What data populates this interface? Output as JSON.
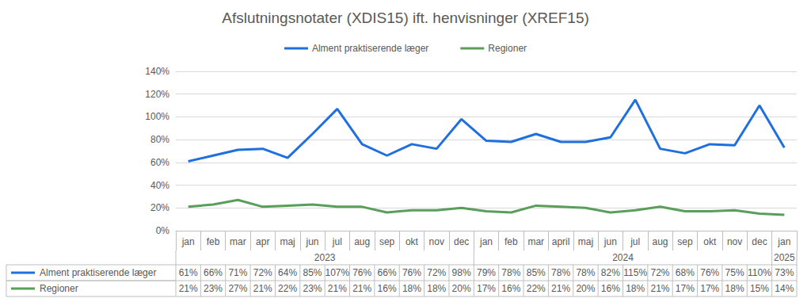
{
  "chart_data": {
    "type": "line",
    "title": "Afslutningsnotater (XDIS15) ift. henvisninger (XREF15)",
    "categories": [
      "jan",
      "feb",
      "mar",
      "apr",
      "maj",
      "jun",
      "jul",
      "aug",
      "sep",
      "okt",
      "nov",
      "dec",
      "jan",
      "feb",
      "mar",
      "april",
      "maj",
      "jun",
      "jul",
      "aug",
      "sep",
      "okt",
      "nov",
      "dec",
      "jan"
    ],
    "category_years": [
      "2023",
      "2023",
      "2023",
      "2023",
      "2023",
      "2023",
      "2023",
      "2023",
      "2023",
      "2023",
      "2023",
      "2023",
      "2024",
      "2024",
      "2024",
      "2024",
      "2024",
      "2024",
      "2024",
      "2024",
      "2024",
      "2024",
      "2024",
      "2024",
      "2025"
    ],
    "series": [
      {
        "name": "Alment praktiserende læger",
        "color": "#1f6fe0",
        "values": [
          61,
          66,
          71,
          72,
          64,
          85,
          107,
          76,
          66,
          76,
          72,
          98,
          79,
          78,
          85,
          78,
          78,
          82,
          115,
          72,
          68,
          76,
          75,
          110,
          73
        ],
        "value_labels": [
          "61%",
          "66%",
          "71%",
          "72%",
          "64%",
          "85%",
          "107%",
          "76%",
          "66%",
          "76%",
          "72%",
          "98%",
          "79%",
          "78%",
          "85%",
          "78%",
          "78%",
          "82%",
          "115%",
          "72%",
          "68%",
          "76%",
          "75%",
          "110%",
          "73%"
        ]
      },
      {
        "name": "Regioner",
        "color": "#5a9e5c",
        "values": [
          21,
          23,
          27,
          21,
          22,
          23,
          21,
          21,
          16,
          18,
          18,
          20,
          17,
          16,
          22,
          21,
          20,
          16,
          18,
          21,
          17,
          17,
          18,
          15,
          14
        ],
        "value_labels": [
          "21%",
          "23%",
          "27%",
          "21%",
          "22%",
          "23%",
          "21%",
          "21%",
          "16%",
          "18%",
          "18%",
          "20%",
          "17%",
          "16%",
          "22%",
          "21%",
          "20%",
          "16%",
          "18%",
          "21%",
          "17%",
          "17%",
          "18%",
          "15%",
          "14%"
        ]
      }
    ],
    "ylim": [
      0,
      140
    ],
    "yticks": [
      {
        "value": 0,
        "label": "0%"
      },
      {
        "value": 20,
        "label": "20%"
      },
      {
        "value": 40,
        "label": "40%"
      },
      {
        "value": 60,
        "label": "60%"
      },
      {
        "value": 80,
        "label": "80%"
      },
      {
        "value": 100,
        "label": "100%"
      },
      {
        "value": 120,
        "label": "120%"
      },
      {
        "value": 140,
        "label": "140%"
      }
    ],
    "grid": true,
    "legend": "top"
  }
}
